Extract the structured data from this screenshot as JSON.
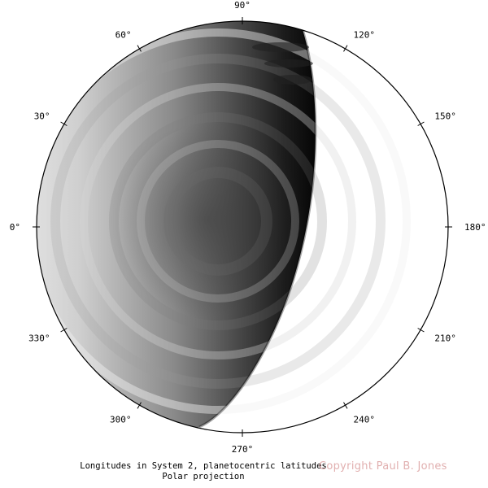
{
  "projection": {
    "caption_line1": "Longitudes in System 2, planetocentric latitudes",
    "caption_line2": "Polar projection",
    "copyright": "Copyright Paul B. Jones"
  },
  "longitude_labels": [
    {
      "deg": 0,
      "text": "0°"
    },
    {
      "deg": 30,
      "text": "30°"
    },
    {
      "deg": 60,
      "text": "60°"
    },
    {
      "deg": 90,
      "text": "90°"
    },
    {
      "deg": 120,
      "text": "120°"
    },
    {
      "deg": 150,
      "text": "150°"
    },
    {
      "deg": 180,
      "text": "180°"
    },
    {
      "deg": 210,
      "text": "210°"
    },
    {
      "deg": 240,
      "text": "240°"
    },
    {
      "deg": 270,
      "text": "270°"
    },
    {
      "deg": 300,
      "text": "300°"
    },
    {
      "deg": 330,
      "text": "330°"
    }
  ],
  "colors": {
    "frame": "#000000",
    "background": "#ffffff",
    "imagery_light": "#e6e6e6",
    "imagery_dark": "#0a0a0a",
    "copyright": "#c86e6e"
  }
}
